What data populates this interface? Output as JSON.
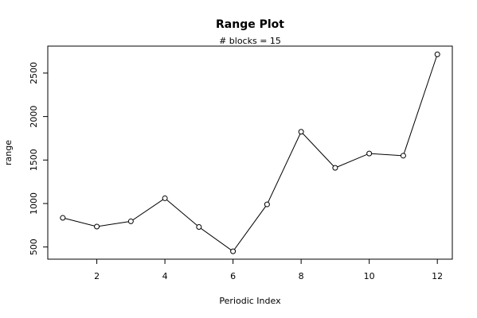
{
  "chart_data": {
    "type": "line",
    "title": "Range Plot",
    "subtitle": "# blocks =  15",
    "x_label": "Periodic Index",
    "y_label": "range",
    "x": [
      1,
      2,
      3,
      4,
      5,
      6,
      7,
      8,
      9,
      10,
      11,
      12
    ],
    "values": [
      835,
      735,
      795,
      1060,
      730,
      450,
      990,
      1825,
      1410,
      1575,
      1550,
      2715
    ],
    "color": "#000000",
    "xlim": [
      0.56,
      12.44
    ],
    "xticks": [
      2,
      4,
      6,
      8,
      10,
      12
    ],
    "ylim": [
      360,
      2810
    ],
    "yticks": [
      500,
      1000,
      1500,
      2000,
      2500
    ]
  }
}
